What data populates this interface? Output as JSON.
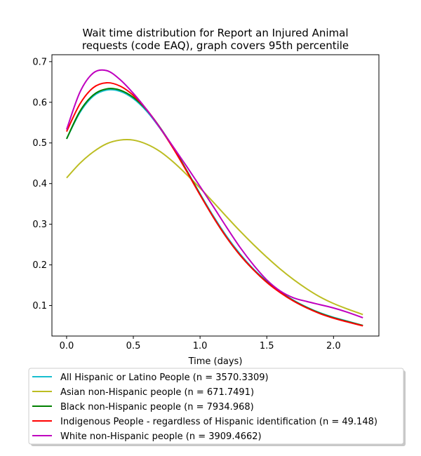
{
  "chart_data": {
    "type": "line",
    "title_lines": [
      "Wait time distribution  for Report an Injured Animal",
      "requests (code EAQ), graph covers 95th percentile"
    ],
    "xlabel": "Time (days)",
    "ylabel": "",
    "xlim": [
      -0.11,
      2.34
    ],
    "ylim": [
      0.025,
      0.717
    ],
    "x_ticks": [
      0.0,
      0.5,
      1.0,
      1.5,
      2.0
    ],
    "x_tick_labels": [
      "0.0",
      "0.5",
      "1.0",
      "1.5",
      "2.0"
    ],
    "y_ticks": [
      0.1,
      0.2,
      0.3,
      0.4,
      0.5,
      0.6,
      0.7
    ],
    "y_tick_labels": [
      "0.1",
      "0.2",
      "0.3",
      "0.4",
      "0.5",
      "0.6",
      "0.7"
    ],
    "grid": false,
    "legend_position": "below",
    "x": [
      0.0,
      0.1,
      0.2,
      0.3,
      0.4,
      0.5,
      0.6,
      0.7,
      0.8,
      0.9,
      1.0,
      1.1,
      1.2,
      1.3,
      1.4,
      1.5,
      1.6,
      1.7,
      1.8,
      1.9,
      2.0,
      2.1,
      2.22
    ],
    "series": [
      {
        "name": "All Hispanic or Latino People (n = 3570.3309)",
        "color": "#17becf",
        "values": [
          0.51,
          0.575,
          0.615,
          0.63,
          0.627,
          0.609,
          0.578,
          0.536,
          0.487,
          0.432,
          0.375,
          0.32,
          0.27,
          0.227,
          0.19,
          0.16,
          0.134,
          0.113,
          0.096,
          0.082,
          0.071,
          0.062,
          0.051
        ]
      },
      {
        "name": "Asian non-Hispanic people (n = 671.7491)",
        "color": "#bcbd22",
        "values": [
          0.414,
          0.45,
          0.478,
          0.498,
          0.507,
          0.507,
          0.497,
          0.479,
          0.453,
          0.422,
          0.389,
          0.354,
          0.318,
          0.283,
          0.25,
          0.219,
          0.19,
          0.164,
          0.141,
          0.121,
          0.105,
          0.092,
          0.078
        ]
      },
      {
        "name": "Black non-Hispanic people (n = 7934.968)",
        "color": "#008000",
        "values": [
          0.51,
          0.578,
          0.618,
          0.633,
          0.63,
          0.612,
          0.581,
          0.538,
          0.488,
          0.432,
          0.373,
          0.317,
          0.267,
          0.224,
          0.188,
          0.158,
          0.133,
          0.112,
          0.095,
          0.081,
          0.07,
          0.061,
          0.051
        ]
      },
      {
        "name": "Indigenous People - regardless of Hispanic identification (n = 49.148)",
        "color": "#ff0000",
        "values": [
          0.528,
          0.596,
          0.636,
          0.648,
          0.64,
          0.617,
          0.582,
          0.537,
          0.486,
          0.43,
          0.372,
          0.317,
          0.267,
          0.224,
          0.188,
          0.157,
          0.132,
          0.111,
          0.094,
          0.08,
          0.069,
          0.06,
          0.05
        ]
      },
      {
        "name": "White non-Hispanic people (n = 3909.4662)",
        "color": "#bf00bf",
        "values": [
          0.533,
          0.625,
          0.672,
          0.678,
          0.656,
          0.622,
          0.582,
          0.537,
          0.49,
          0.442,
          0.393,
          0.343,
          0.292,
          0.243,
          0.2,
          0.163,
          0.136,
          0.119,
          0.11,
          0.102,
          0.094,
          0.084,
          0.07
        ]
      }
    ]
  }
}
